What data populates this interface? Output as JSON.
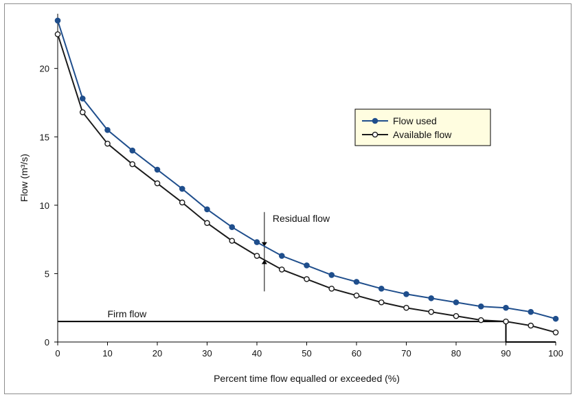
{
  "chart_data": {
    "type": "line",
    "title": "",
    "xlabel": "Percent time flow equalled or exceeded (%)",
    "ylabel": "Flow (m³/s)",
    "xlim": [
      0,
      100
    ],
    "ylim": [
      0,
      24
    ],
    "x_ticks": [
      0,
      10,
      20,
      30,
      40,
      50,
      60,
      70,
      80,
      90,
      100
    ],
    "y_ticks": [
      0,
      5,
      10,
      15,
      20
    ],
    "x": [
      0,
      5,
      10,
      15,
      20,
      25,
      30,
      35,
      40,
      45,
      50,
      55,
      60,
      65,
      70,
      75,
      80,
      85,
      90,
      95,
      100
    ],
    "series": [
      {
        "name": "Flow used",
        "color": "#1f4e8c",
        "marker": "filled-circle",
        "values": [
          23.5,
          17.8,
          15.5,
          14.0,
          12.6,
          11.2,
          9.7,
          8.4,
          7.3,
          6.3,
          5.6,
          4.9,
          4.4,
          3.9,
          3.5,
          3.2,
          2.9,
          2.6,
          2.5,
          2.2,
          1.7
        ]
      },
      {
        "name": "Available flow",
        "color": "#1a1a1a",
        "marker": "open-circle",
        "values": [
          22.5,
          16.8,
          14.5,
          13.0,
          11.6,
          10.2,
          8.7,
          7.4,
          6.3,
          5.3,
          4.6,
          3.9,
          3.4,
          2.9,
          2.5,
          2.2,
          1.9,
          1.6,
          1.5,
          1.2,
          0.7
        ]
      }
    ],
    "annotations": {
      "firm_flow_label": "Firm flow",
      "firm_flow_value": 1.5,
      "firm_flow_end_x": 90,
      "residual_flow_label": "Residual flow",
      "residual_flow_x": 41.5
    },
    "legend": {
      "placement": "upper-right",
      "entries": [
        "Flow used",
        "Available flow"
      ]
    },
    "grid": false
  }
}
